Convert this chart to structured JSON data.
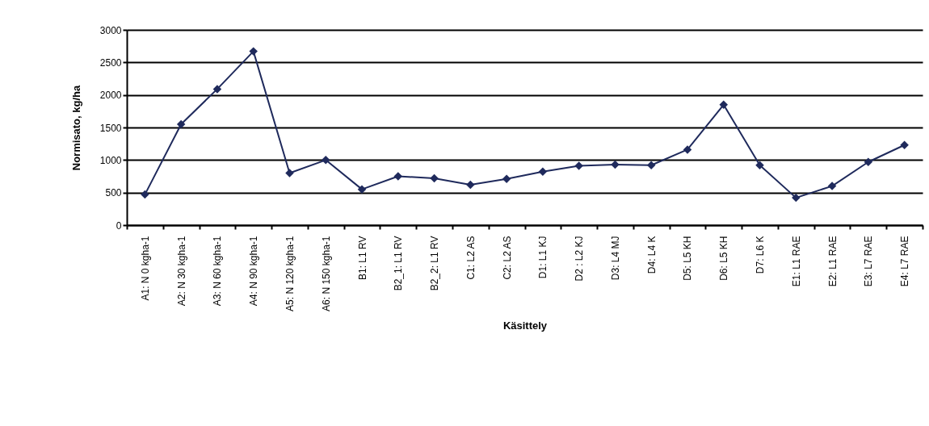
{
  "chart_data": {
    "type": "line",
    "xlabel": "Käsittely",
    "ylabel": "Normisato, kg/ha",
    "categories": [
      "A1: N 0 kgha-1",
      "A2: N 30 kgha-1",
      "A3: N 60 kgha-1",
      "A4: N 90 kgha-1",
      "A5: N 120 kgha-1",
      "A6: N 150 kgha-1",
      "B1: L1 RV",
      "B2_1: L1 RV",
      "B2_2: L1 RV",
      "C1: L2 AS",
      "C2: L2 AS",
      "D1: L1 KJ",
      "D2 : L2 KJ",
      "D3: L4 MJ",
      "D4: L4 K",
      "D5: L5 KH",
      "D6: L5 KH",
      "D7: L6 K",
      "E1: L1 RAE",
      "E2: L1 RAE",
      "E3: L7 RAE",
      "E4: L7 RAE"
    ],
    "series": [
      {
        "color": "#1f2a5c",
        "values": [
          470,
          1550,
          2090,
          2670,
          800,
          1000,
          550,
          750,
          720,
          620,
          710,
          820,
          910,
          930,
          920,
          1160,
          1850,
          920,
          420,
          600,
          970,
          1230
        ]
      }
    ],
    "ylim": [
      0,
      3000
    ],
    "yticks": [
      0,
      500,
      1000,
      1500,
      2000,
      2500,
      3000
    ],
    "grid": "y",
    "marker": "diamond",
    "line_style": "solid"
  }
}
